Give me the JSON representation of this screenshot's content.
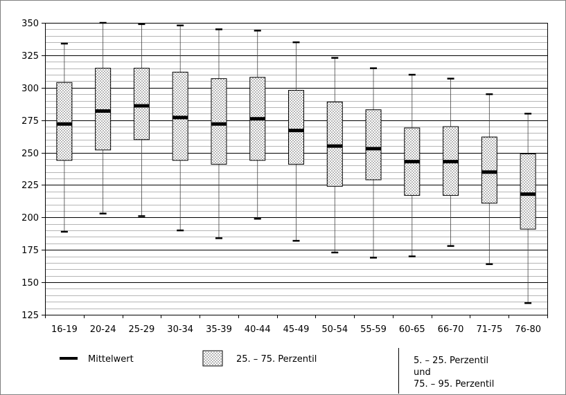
{
  "chart_data": {
    "type": "boxplot",
    "title": "",
    "xlabel": "",
    "ylabel": "",
    "ylim": [
      125,
      350
    ],
    "y_major_ticks": [
      125,
      150,
      175,
      200,
      225,
      250,
      275,
      300,
      325,
      350
    ],
    "y_minor_step": 5,
    "grid": true,
    "categories": [
      "16-19",
      "20-24",
      "25-29",
      "30-34",
      "35-39",
      "40-44",
      "45-49",
      "50-54",
      "55-59",
      "60-65",
      "66-70",
      "71-75",
      "76-80"
    ],
    "p5": [
      189,
      203,
      201,
      190,
      184,
      199,
      182,
      173,
      169,
      170,
      178,
      164,
      134
    ],
    "p25": [
      244,
      252,
      260,
      244,
      241,
      244,
      241,
      224,
      229,
      217,
      217,
      211,
      191
    ],
    "mean": [
      272,
      282,
      286,
      277,
      272,
      276,
      267,
      255,
      253,
      243,
      243,
      235,
      218
    ],
    "p75": [
      304,
      315,
      315,
      312,
      307,
      308,
      298,
      289,
      283,
      269,
      270,
      262,
      249
    ],
    "p95": [
      334,
      350,
      349,
      348,
      345,
      344,
      335,
      323,
      315,
      310,
      307,
      295,
      280
    ],
    "colors": {
      "box_fill": "#ffffff",
      "dots": "#555555",
      "mean": "#000000",
      "grid": "#b5b5b5",
      "grid_major": "#000000"
    },
    "legend": {
      "position": "bottom",
      "mean_label": "Mittelwert",
      "box_label": "25. – 75. Perzentil",
      "whisker_label_1": "5. – 25. Perzentil",
      "whisker_label_2": "und",
      "whisker_label_3": "75. – 95. Perzentil"
    }
  }
}
